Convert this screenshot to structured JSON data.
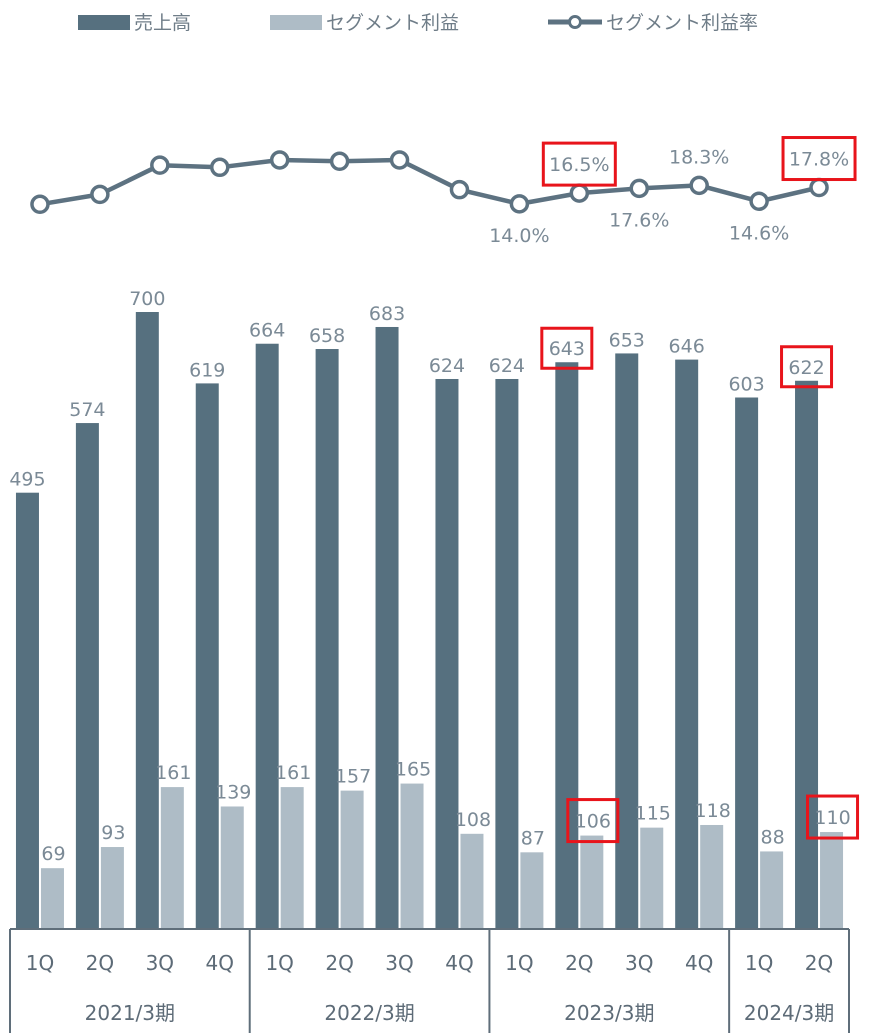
{
  "chart_data": {
    "type": "bar+line",
    "categories": [
      "1Q",
      "2Q",
      "3Q",
      "4Q",
      "1Q",
      "2Q",
      "3Q",
      "4Q",
      "1Q",
      "2Q",
      "3Q",
      "4Q",
      "1Q",
      "2Q"
    ],
    "periods": [
      {
        "label": "2021/3期",
        "count": 4
      },
      {
        "label": "2022/3期",
        "count": 4
      },
      {
        "label": "2023/3期",
        "count": 4
      },
      {
        "label": "2024/3期",
        "count": 2
      }
    ],
    "series": [
      {
        "name": "売上高",
        "type": "bar",
        "color": "#56707f",
        "values": [
          495,
          574,
          700,
          619,
          664,
          658,
          683,
          624,
          624,
          643,
          653,
          646,
          603,
          622
        ]
      },
      {
        "name": "セグメント利益",
        "type": "bar",
        "color": "#aebcc6",
        "values": [
          69,
          93,
          161,
          139,
          161,
          157,
          165,
          108,
          87,
          106,
          115,
          118,
          88,
          110
        ]
      },
      {
        "name": "セグメント利益率",
        "type": "line",
        "color": "#5d7281",
        "unit": "%",
        "values": [
          13.9,
          16.2,
          23.0,
          22.5,
          24.2,
          23.9,
          24.2,
          17.3,
          14.0,
          16.5,
          17.6,
          18.3,
          14.6,
          17.8
        ],
        "labels": [
          "",
          "",
          "",
          "",
          "",
          "",
          "",
          "",
          "14.0%",
          "16.5%",
          "17.6%",
          "18.3%",
          "14.6%",
          "17.8%"
        ]
      }
    ],
    "highlighted": {
      "sales_index": [
        9,
        13
      ],
      "profit_index": [
        9,
        13
      ],
      "margin_index": [
        9,
        13
      ],
      "color": "#e8141b"
    },
    "legend_position": "top",
    "grid": false
  }
}
